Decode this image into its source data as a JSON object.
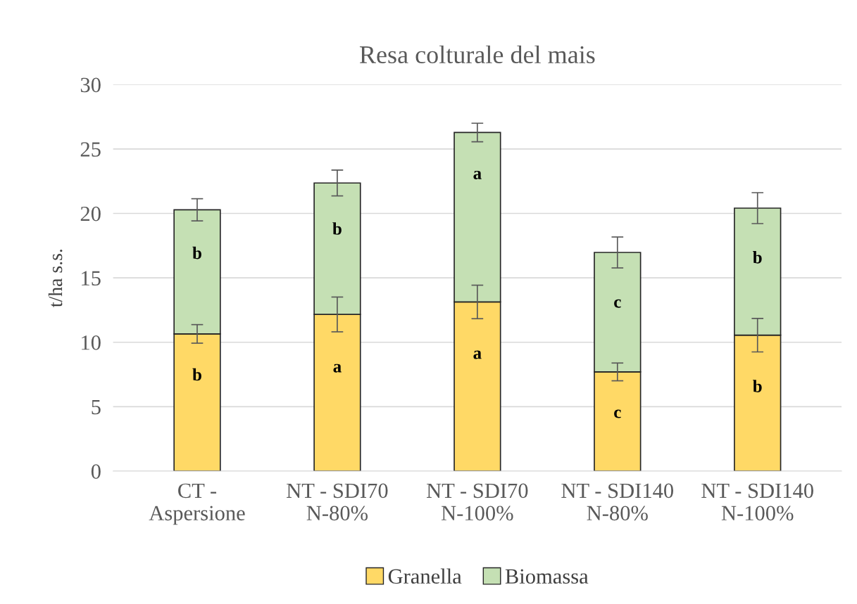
{
  "chart_data": {
    "type": "bar",
    "title": "Resa colturale del mais",
    "ylabel": "t/ha s.s.",
    "categories": [
      "CT -\nAspersione",
      "NT - SDI70\nN-80%",
      "NT - SDI70\nN-100%",
      "NT - SDI140\nN-80%",
      "NT - SDI140\nN-100%"
    ],
    "stacked": true,
    "series": [
      {
        "name": "Granella",
        "color": "#ffd966",
        "values": [
          10.65,
          12.16,
          13.13,
          7.7,
          10.55
        ],
        "errors": [
          0.72,
          1.35,
          1.3,
          0.69,
          1.3
        ],
        "value_labels": [
          "b",
          "a",
          "a",
          "c",
          "b"
        ]
      },
      {
        "name": "Biomassa",
        "color": "#c5e0b4",
        "values": [
          9.63,
          10.2,
          13.15,
          9.27,
          9.86
        ],
        "errors": [
          0.86,
          1.0,
          0.72,
          1.2,
          1.2
        ],
        "value_labels": [
          "b",
          "b",
          "a",
          "c",
          "b"
        ]
      }
    ],
    "ylim": [
      0,
      30
    ],
    "yticks": [
      0,
      5,
      10,
      15,
      20,
      25,
      30
    ],
    "grid": "y",
    "legend": "bottom"
  }
}
